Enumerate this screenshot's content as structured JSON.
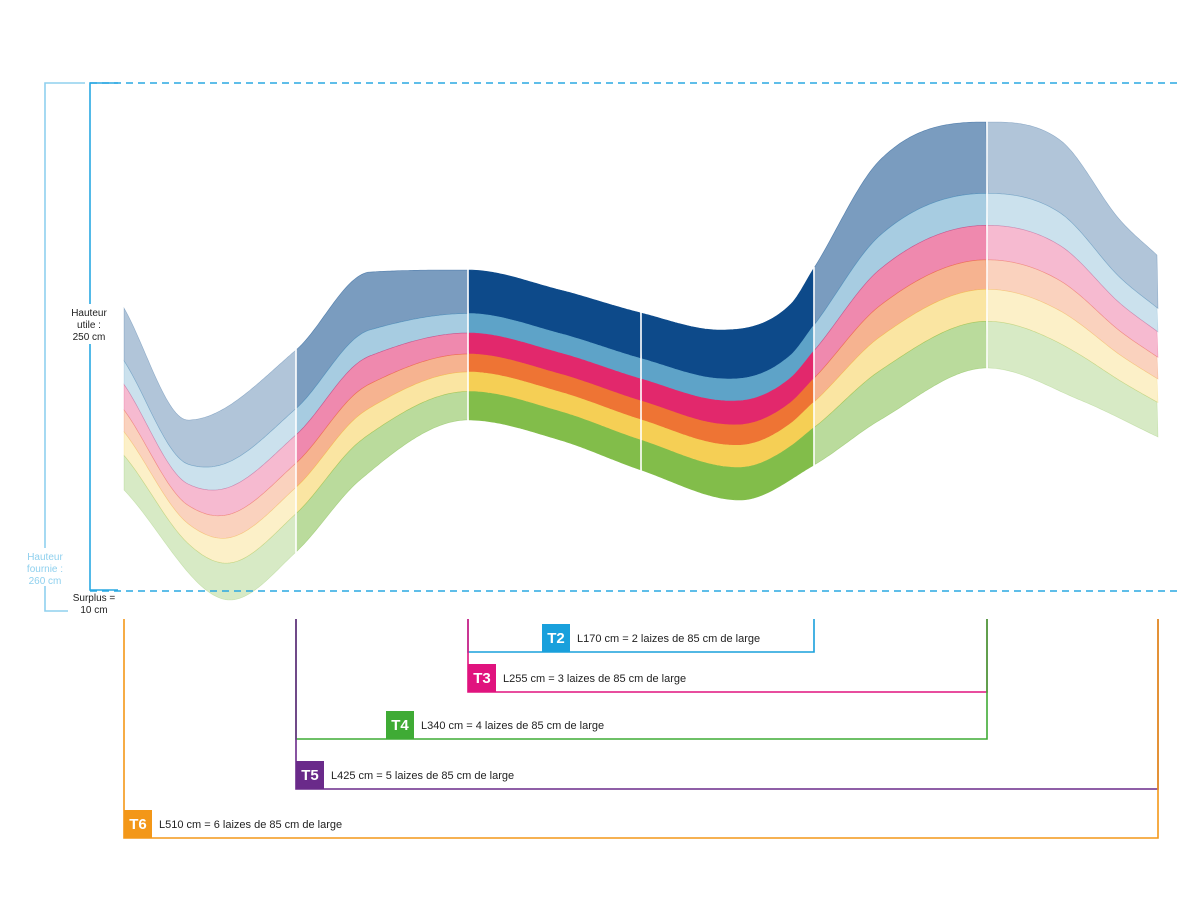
{
  "height_labels": {
    "utile": [
      "Hauteur",
      "utile :",
      "250 cm"
    ],
    "fournie": [
      "Hauteur",
      "fournie :",
      "260 cm"
    ],
    "surplus": [
      "Surplus =",
      "10 cm"
    ]
  },
  "stripe_colors": [
    "#0d4a8a",
    "#5ea3c8",
    "#e2286c",
    "#ee7434",
    "#f5cf55",
    "#82bd4a"
  ],
  "widths": [
    {
      "code": "T2",
      "text": "L170 cm = 2 laizes de 85 cm de large",
      "color": "#19a0dc"
    },
    {
      "code": "T3",
      "text": "L255 cm = 3 laizes de 85 cm de large",
      "color": "#e0137e"
    },
    {
      "code": "T4",
      "text": "L340 cm = 4 laizes de 85 cm de large",
      "color": "#3fab35"
    },
    {
      "code": "T5",
      "text": "L425 cm = 5 laizes de 85 cm de large",
      "color": "#6a2a8a"
    },
    {
      "code": "T6",
      "text": "L510 cm = 6 laizes de 85 cm de large",
      "color": "#f39718"
    }
  ],
  "guide_colors": {
    "utile": "#2aa8e2",
    "fournie": "#8fd0ee"
  }
}
